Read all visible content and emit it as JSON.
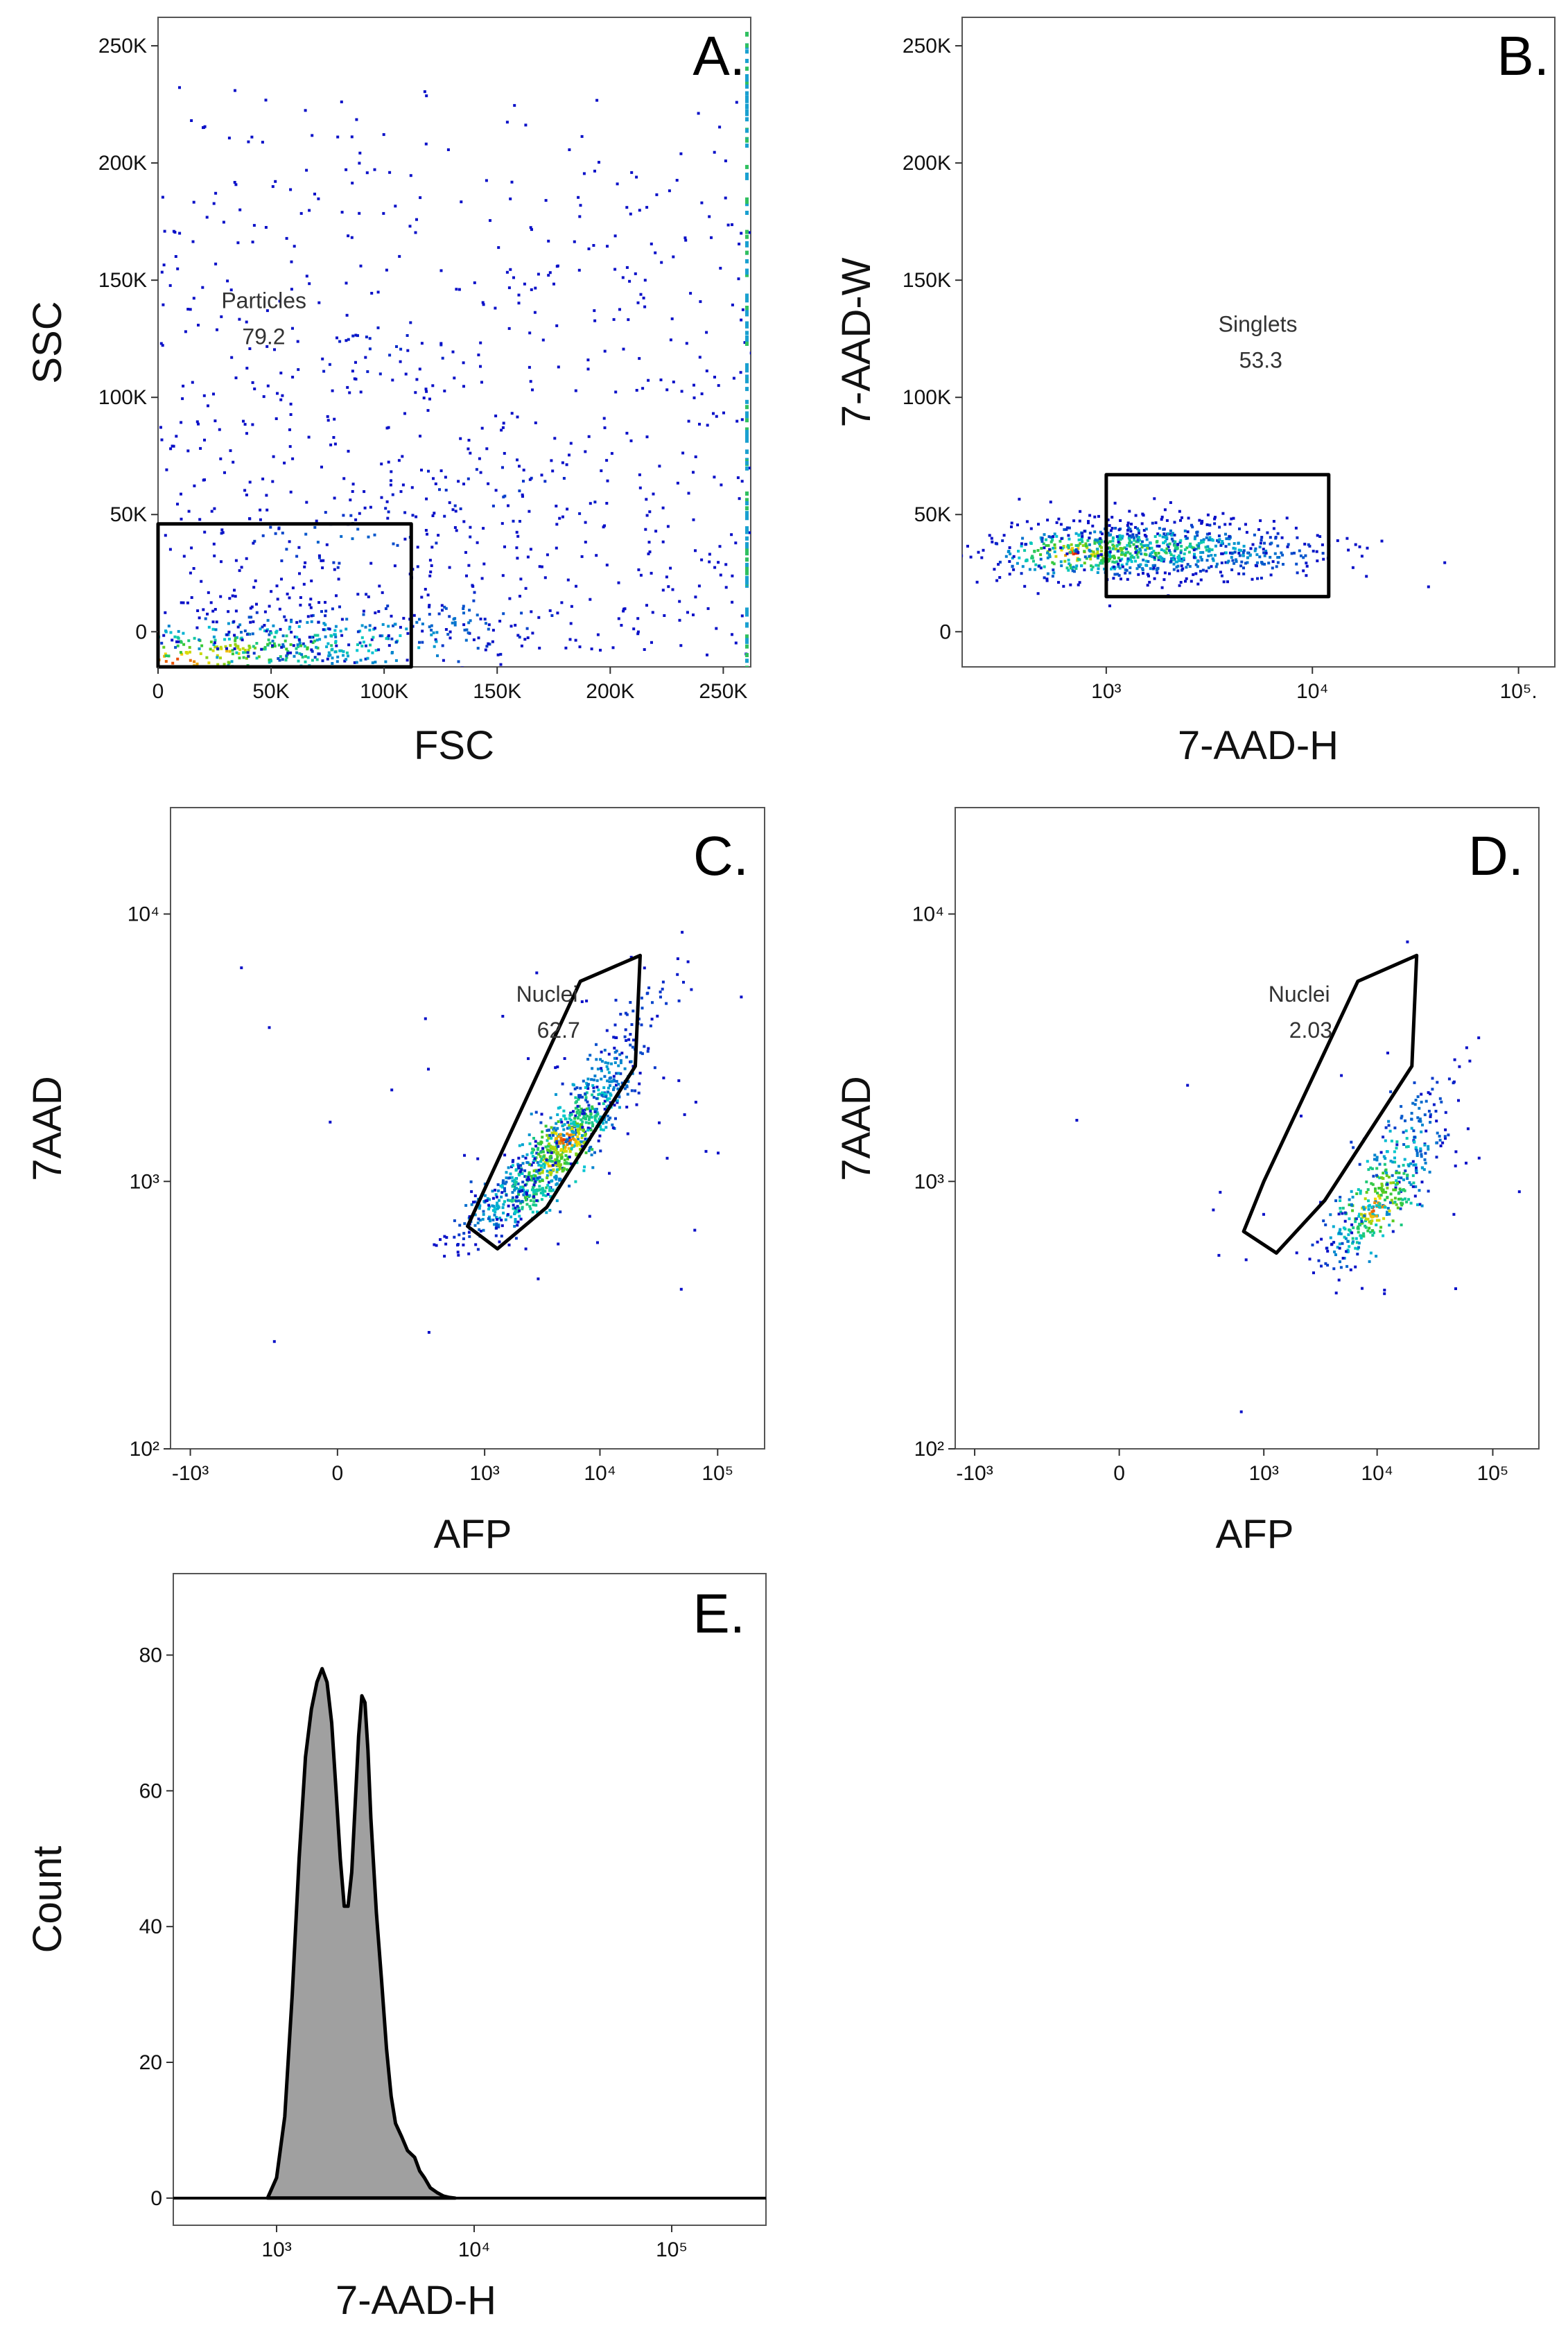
{
  "chart_data": [
    {
      "panel": "A.",
      "type": "scatter",
      "xlabel": "FSC",
      "ylabel": "SSC",
      "xlim": [
        0,
        262144
      ],
      "ylim": [
        -15000,
        262144
      ],
      "xscale": "linear",
      "yscale": "linear",
      "xticks": [
        {
          "v": 0,
          "t": "0"
        },
        {
          "v": 50000,
          "t": "50K"
        },
        {
          "v": 100000,
          "t": "100K"
        },
        {
          "v": 150000,
          "t": "150K"
        },
        {
          "v": 200000,
          "t": "200K"
        },
        {
          "v": 250000,
          "t": "250K"
        }
      ],
      "yticks": [
        {
          "v": 0,
          "t": "0"
        },
        {
          "v": 50000,
          "t": "50K"
        },
        {
          "v": 100000,
          "t": "100K"
        },
        {
          "v": 150000,
          "t": "150K"
        },
        {
          "v": 200000,
          "t": "200K"
        },
        {
          "v": 250000,
          "t": "250K"
        }
      ],
      "gate": {
        "name": "Particles",
        "value": "79.2",
        "shape": "rectangle",
        "points": [
          [
            0,
            -15000
          ],
          [
            112000,
            -15000
          ],
          [
            112000,
            46000
          ],
          [
            0,
            46000
          ]
        ],
        "label_at": [
          28000,
          138000
        ]
      },
      "density": [
        {
          "x": 8000,
          "y": -12000,
          "level": 1.0
        },
        {
          "x": 30000,
          "y": -8000,
          "level": 0.85
        },
        {
          "x": 60000,
          "y": -6000,
          "level": 0.65
        },
        {
          "x": 95000,
          "y": -4000,
          "level": 0.45
        },
        {
          "x": 130000,
          "y": 5000,
          "level": 0.2
        },
        {
          "x": 80000,
          "y": 40000,
          "level": 0.18
        },
        {
          "x": 150000,
          "y": 60000,
          "level": 0.1
        },
        {
          "x": 100000,
          "y": 120000,
          "level": 0.06
        }
      ]
    },
    {
      "panel": "B.",
      "type": "scatter",
      "xlabel": "7-AAD-H",
      "ylabel": "7-AAD-W",
      "xlim": [
        200,
        150000
      ],
      "ylim": [
        -15000,
        262144
      ],
      "xscale": "log",
      "yscale": "linear",
      "xticks": [
        {
          "v": 1000,
          "t": "10³"
        },
        {
          "v": 10000,
          "t": "10⁴"
        },
        {
          "v": 100000,
          "t": "10⁵."
        }
      ],
      "yticks": [
        {
          "v": 0,
          "t": "0"
        },
        {
          "v": 50000,
          "t": "50K"
        },
        {
          "v": 100000,
          "t": "100K"
        },
        {
          "v": 150000,
          "t": "150K"
        },
        {
          "v": 200000,
          "t": "200K"
        },
        {
          "v": 250000,
          "t": "250K"
        }
      ],
      "gate": {
        "name": "Singlets",
        "value": "53.3",
        "shape": "rectangle",
        "points": [
          [
            1000,
            15000
          ],
          [
            12000,
            15000
          ],
          [
            12000,
            67000
          ],
          [
            1000,
            67000
          ]
        ],
        "label_at": [
          3500,
          128000
        ]
      },
      "density": [
        {
          "x": 700,
          "y": 34000,
          "level": 1.0
        },
        {
          "x": 1000,
          "y": 35000,
          "level": 0.8
        },
        {
          "x": 1600,
          "y": 36000,
          "level": 0.7
        },
        {
          "x": 2500,
          "y": 36000,
          "level": 0.55
        },
        {
          "x": 4000,
          "y": 35000,
          "level": 0.35
        },
        {
          "x": 6500,
          "y": 33000,
          "level": 0.2
        }
      ]
    },
    {
      "panel": "C.",
      "type": "scatter",
      "xlabel": "AFP",
      "ylabel": "7AAD",
      "xscale": "biexponential",
      "yscale": "log",
      "ylim": [
        100,
        25000
      ],
      "xticks": [
        {
          "v": -1000,
          "t": "-10³"
        },
        {
          "v": 0,
          "t": "0"
        },
        {
          "v": 1000,
          "t": "10³"
        },
        {
          "v": 10000,
          "t": "10⁴"
        },
        {
          "v": 100000,
          "t": "10⁵"
        }
      ],
      "yticks": [
        {
          "v": 100,
          "t": "10²"
        },
        {
          "v": 1000,
          "t": "10³"
        },
        {
          "v": 10000,
          "t": "10⁴"
        }
      ],
      "gate": {
        "name": "Nuclei",
        "value": "62.7",
        "shape": "polygon",
        "points": [
          [
            700,
            680
          ],
          [
            1300,
            560
          ],
          [
            3500,
            800
          ],
          [
            20000,
            2700
          ],
          [
            22000,
            7000
          ],
          [
            6800,
            5600
          ]
        ],
        "label_at": [
          1900,
          4700
        ]
      },
      "density": [
        {
          "x": 1200,
          "y": 800,
          "level": 0.35
        },
        {
          "x": 2200,
          "y": 900,
          "level": 0.6
        },
        {
          "x": 3500,
          "y": 1150,
          "level": 0.85
        },
        {
          "x": 5000,
          "y": 1450,
          "level": 1.0
        },
        {
          "x": 7500,
          "y": 1900,
          "level": 0.6
        },
        {
          "x": 12000,
          "y": 2600,
          "level": 0.3
        },
        {
          "x": 25000,
          "y": 4500,
          "level": 0.12
        }
      ]
    },
    {
      "panel": "D.",
      "type": "scatter",
      "xlabel": "AFP",
      "ylabel": "7AAD",
      "xscale": "biexponential",
      "yscale": "log",
      "ylim": [
        100,
        25000
      ],
      "xticks": [
        {
          "v": -1000,
          "t": "-10³"
        },
        {
          "v": 0,
          "t": "0"
        },
        {
          "v": 1000,
          "t": "10³"
        },
        {
          "v": 10000,
          "t": "10⁴"
        },
        {
          "v": 100000,
          "t": "10⁵"
        }
      ],
      "yticks": [
        {
          "v": 100,
          "t": "10²"
        },
        {
          "v": 1000,
          "t": "10³"
        },
        {
          "v": 10000,
          "t": "10⁴"
        }
      ],
      "gate": {
        "name": "Nuclei",
        "value": "2.03",
        "shape": "polygon",
        "points": [
          [
            650,
            650
          ],
          [
            1300,
            540
          ],
          [
            3500,
            850
          ],
          [
            20000,
            2700
          ],
          [
            22000,
            7000
          ],
          [
            6800,
            5600
          ],
          [
            1000,
            1000
          ]
        ],
        "label_at": [
          1100,
          4700
        ]
      },
      "density": [
        {
          "x": 7000,
          "y": 650,
          "level": 0.55
        },
        {
          "x": 9500,
          "y": 800,
          "level": 1.0
        },
        {
          "x": 12000,
          "y": 1000,
          "level": 0.75
        },
        {
          "x": 16000,
          "y": 1400,
          "level": 0.45
        },
        {
          "x": 22000,
          "y": 1900,
          "level": 0.2
        }
      ]
    },
    {
      "panel": "E.",
      "type": "area",
      "xlabel": "7-AAD-H",
      "ylabel": "Count",
      "xscale": "log",
      "xlim": [
        300,
        300000
      ],
      "ylim": [
        -4,
        92
      ],
      "xticks": [
        {
          "v": 1000,
          "t": "10³"
        },
        {
          "v": 10000,
          "t": "10⁴"
        },
        {
          "v": 100000,
          "t": "10⁵"
        }
      ],
      "yticks": [
        {
          "v": 0,
          "t": "0"
        },
        {
          "v": 20,
          "t": "20"
        },
        {
          "v": 40,
          "t": "40"
        },
        {
          "v": 60,
          "t": "60"
        },
        {
          "v": 80,
          "t": "80"
        }
      ],
      "x": [
        900,
        1000,
        1100,
        1200,
        1300,
        1400,
        1500,
        1600,
        1700,
        1800,
        1900,
        2000,
        2100,
        2200,
        2300,
        2400,
        2500,
        2600,
        2700,
        2800,
        2900,
        3000,
        3200,
        3400,
        3600,
        3800,
        4000,
        4300,
        4600,
        5000,
        5300,
        5600,
        6000,
        6500,
        7000,
        7500,
        8000
      ],
      "values": [
        0,
        3,
        12,
        30,
        50,
        65,
        72,
        76,
        78,
        76,
        70,
        60,
        50,
        43,
        43,
        48,
        58,
        68,
        74,
        73,
        66,
        56,
        42,
        32,
        22,
        15,
        11,
        9,
        7,
        6,
        4,
        3,
        1.5,
        0.8,
        0.3,
        0.1,
        0
      ],
      "fill": "#a0a0a0",
      "stroke": "#000000"
    }
  ],
  "colors": {
    "low_density": "#0a10c8",
    "mid_density": "#00d0d0",
    "high_density": "#e81800",
    "gate_line": "#000000"
  }
}
